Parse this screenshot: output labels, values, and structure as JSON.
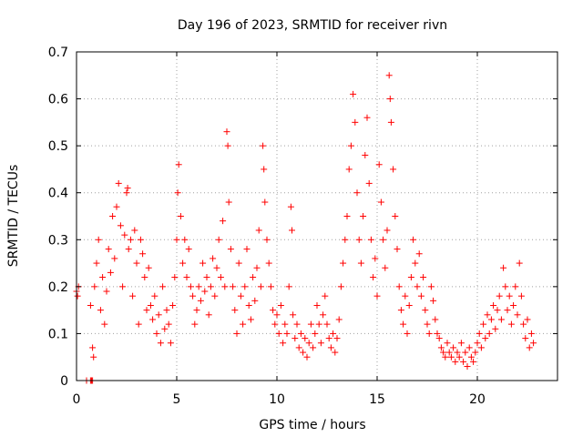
{
  "chart_data": {
    "type": "scatter",
    "title": "Day 196 of 2023, SRMTID for receiver rivn",
    "xlabel": "GPS time / hours",
    "ylabel": "SRMTID / TECUs",
    "xlim": [
      0,
      24
    ],
    "ylim": [
      0,
      0.7
    ],
    "xticks": [
      0,
      5,
      10,
      15,
      20
    ],
    "yticks": [
      0,
      0.1,
      0.2,
      0.3,
      0.4,
      0.5,
      0.6,
      0.7
    ],
    "grid": true,
    "marker": "plus",
    "color": "#ff0000",
    "series": [
      {
        "name": "SRMTID",
        "points": [
          [
            0.0,
            0.19
          ],
          [
            0.05,
            0.18
          ],
          [
            0.1,
            0.2
          ],
          [
            0.5,
            0.0
          ],
          [
            0.7,
            0.0
          ],
          [
            0.75,
            0.0
          ],
          [
            0.8,
            0.0
          ],
          [
            0.7,
            0.16
          ],
          [
            0.8,
            0.07
          ],
          [
            0.85,
            0.05
          ],
          [
            0.9,
            0.2
          ],
          [
            1.0,
            0.25
          ],
          [
            1.1,
            0.3
          ],
          [
            1.2,
            0.15
          ],
          [
            1.3,
            0.22
          ],
          [
            1.4,
            0.12
          ],
          [
            1.5,
            0.19
          ],
          [
            1.6,
            0.28
          ],
          [
            1.7,
            0.23
          ],
          [
            1.8,
            0.35
          ],
          [
            1.9,
            0.26
          ],
          [
            2.0,
            0.37
          ],
          [
            2.1,
            0.42
          ],
          [
            2.2,
            0.33
          ],
          [
            2.3,
            0.2
          ],
          [
            2.4,
            0.31
          ],
          [
            2.5,
            0.4
          ],
          [
            2.55,
            0.41
          ],
          [
            2.6,
            0.28
          ],
          [
            2.7,
            0.3
          ],
          [
            2.8,
            0.18
          ],
          [
            2.9,
            0.32
          ],
          [
            3.0,
            0.25
          ],
          [
            3.1,
            0.12
          ],
          [
            3.2,
            0.3
          ],
          [
            3.3,
            0.27
          ],
          [
            3.4,
            0.22
          ],
          [
            3.5,
            0.15
          ],
          [
            3.6,
            0.24
          ],
          [
            3.7,
            0.16
          ],
          [
            3.8,
            0.13
          ],
          [
            3.9,
            0.18
          ],
          [
            4.0,
            0.1
          ],
          [
            4.1,
            0.14
          ],
          [
            4.2,
            0.08
          ],
          [
            4.3,
            0.2
          ],
          [
            4.4,
            0.11
          ],
          [
            4.5,
            0.15
          ],
          [
            4.6,
            0.12
          ],
          [
            4.7,
            0.08
          ],
          [
            4.8,
            0.16
          ],
          [
            4.9,
            0.22
          ],
          [
            5.0,
            0.3
          ],
          [
            5.05,
            0.4
          ],
          [
            5.1,
            0.46
          ],
          [
            5.2,
            0.35
          ],
          [
            5.3,
            0.25
          ],
          [
            5.4,
            0.3
          ],
          [
            5.5,
            0.22
          ],
          [
            5.6,
            0.28
          ],
          [
            5.7,
            0.2
          ],
          [
            5.8,
            0.18
          ],
          [
            5.9,
            0.12
          ],
          [
            6.0,
            0.15
          ],
          [
            6.1,
            0.2
          ],
          [
            6.2,
            0.17
          ],
          [
            6.3,
            0.25
          ],
          [
            6.4,
            0.19
          ],
          [
            6.5,
            0.22
          ],
          [
            6.6,
            0.14
          ],
          [
            6.7,
            0.2
          ],
          [
            6.8,
            0.26
          ],
          [
            6.9,
            0.18
          ],
          [
            7.0,
            0.24
          ],
          [
            7.1,
            0.3
          ],
          [
            7.2,
            0.22
          ],
          [
            7.3,
            0.34
          ],
          [
            7.4,
            0.2
          ],
          [
            7.5,
            0.53
          ],
          [
            7.55,
            0.5
          ],
          [
            7.6,
            0.38
          ],
          [
            7.7,
            0.28
          ],
          [
            7.8,
            0.2
          ],
          [
            7.9,
            0.15
          ],
          [
            8.0,
            0.1
          ],
          [
            8.1,
            0.25
          ],
          [
            8.2,
            0.18
          ],
          [
            8.3,
            0.12
          ],
          [
            8.4,
            0.2
          ],
          [
            8.5,
            0.28
          ],
          [
            8.6,
            0.16
          ],
          [
            8.7,
            0.13
          ],
          [
            8.8,
            0.22
          ],
          [
            8.9,
            0.17
          ],
          [
            9.0,
            0.24
          ],
          [
            9.1,
            0.32
          ],
          [
            9.2,
            0.2
          ],
          [
            9.3,
            0.5
          ],
          [
            9.35,
            0.45
          ],
          [
            9.4,
            0.38
          ],
          [
            9.5,
            0.3
          ],
          [
            9.6,
            0.25
          ],
          [
            9.7,
            0.2
          ],
          [
            9.8,
            0.15
          ],
          [
            9.9,
            0.12
          ],
          [
            10.0,
            0.14
          ],
          [
            10.1,
            0.1
          ],
          [
            10.2,
            0.16
          ],
          [
            10.3,
            0.08
          ],
          [
            10.4,
            0.12
          ],
          [
            10.5,
            0.1
          ],
          [
            10.6,
            0.2
          ],
          [
            10.7,
            0.37
          ],
          [
            10.75,
            0.32
          ],
          [
            10.8,
            0.14
          ],
          [
            10.9,
            0.09
          ],
          [
            11.0,
            0.12
          ],
          [
            11.1,
            0.07
          ],
          [
            11.2,
            0.1
          ],
          [
            11.3,
            0.06
          ],
          [
            11.4,
            0.09
          ],
          [
            11.5,
            0.05
          ],
          [
            11.6,
            0.08
          ],
          [
            11.7,
            0.12
          ],
          [
            11.8,
            0.07
          ],
          [
            11.9,
            0.1
          ],
          [
            12.0,
            0.16
          ],
          [
            12.1,
            0.12
          ],
          [
            12.2,
            0.08
          ],
          [
            12.3,
            0.14
          ],
          [
            12.4,
            0.18
          ],
          [
            12.5,
            0.12
          ],
          [
            12.6,
            0.09
          ],
          [
            12.7,
            0.07
          ],
          [
            12.8,
            0.1
          ],
          [
            12.9,
            0.06
          ],
          [
            13.0,
            0.09
          ],
          [
            13.1,
            0.13
          ],
          [
            13.2,
            0.2
          ],
          [
            13.3,
            0.25
          ],
          [
            13.4,
            0.3
          ],
          [
            13.5,
            0.35
          ],
          [
            13.6,
            0.45
          ],
          [
            13.7,
            0.5
          ],
          [
            13.8,
            0.61
          ],
          [
            13.9,
            0.55
          ],
          [
            14.0,
            0.4
          ],
          [
            14.1,
            0.3
          ],
          [
            14.2,
            0.25
          ],
          [
            14.3,
            0.35
          ],
          [
            14.4,
            0.48
          ],
          [
            14.5,
            0.56
          ],
          [
            14.6,
            0.42
          ],
          [
            14.7,
            0.3
          ],
          [
            14.8,
            0.22
          ],
          [
            14.9,
            0.26
          ],
          [
            15.0,
            0.18
          ],
          [
            15.1,
            0.46
          ],
          [
            15.2,
            0.38
          ],
          [
            15.3,
            0.3
          ],
          [
            15.4,
            0.24
          ],
          [
            15.5,
            0.32
          ],
          [
            15.6,
            0.65
          ],
          [
            15.65,
            0.6
          ],
          [
            15.7,
            0.55
          ],
          [
            15.8,
            0.45
          ],
          [
            15.9,
            0.35
          ],
          [
            16.0,
            0.28
          ],
          [
            16.1,
            0.2
          ],
          [
            16.2,
            0.15
          ],
          [
            16.3,
            0.12
          ],
          [
            16.4,
            0.18
          ],
          [
            16.5,
            0.1
          ],
          [
            16.6,
            0.16
          ],
          [
            16.7,
            0.22
          ],
          [
            16.8,
            0.3
          ],
          [
            16.9,
            0.25
          ],
          [
            17.0,
            0.2
          ],
          [
            17.1,
            0.27
          ],
          [
            17.2,
            0.18
          ],
          [
            17.3,
            0.22
          ],
          [
            17.4,
            0.15
          ],
          [
            17.5,
            0.12
          ],
          [
            17.6,
            0.1
          ],
          [
            17.7,
            0.2
          ],
          [
            17.8,
            0.17
          ],
          [
            17.9,
            0.13
          ],
          [
            18.0,
            0.1
          ],
          [
            18.1,
            0.09
          ],
          [
            18.2,
            0.07
          ],
          [
            18.3,
            0.06
          ],
          [
            18.4,
            0.05
          ],
          [
            18.5,
            0.08
          ],
          [
            18.6,
            0.06
          ],
          [
            18.7,
            0.05
          ],
          [
            18.8,
            0.07
          ],
          [
            18.9,
            0.04
          ],
          [
            19.0,
            0.06
          ],
          [
            19.1,
            0.05
          ],
          [
            19.2,
            0.08
          ],
          [
            19.3,
            0.04
          ],
          [
            19.4,
            0.06
          ],
          [
            19.5,
            0.03
          ],
          [
            19.6,
            0.07
          ],
          [
            19.7,
            0.05
          ],
          [
            19.8,
            0.04
          ],
          [
            19.9,
            0.06
          ],
          [
            20.0,
            0.08
          ],
          [
            20.1,
            0.1
          ],
          [
            20.2,
            0.07
          ],
          [
            20.3,
            0.12
          ],
          [
            20.4,
            0.09
          ],
          [
            20.5,
            0.14
          ],
          [
            20.6,
            0.1
          ],
          [
            20.7,
            0.13
          ],
          [
            20.8,
            0.16
          ],
          [
            20.9,
            0.11
          ],
          [
            21.0,
            0.15
          ],
          [
            21.1,
            0.18
          ],
          [
            21.2,
            0.13
          ],
          [
            21.3,
            0.24
          ],
          [
            21.4,
            0.2
          ],
          [
            21.5,
            0.15
          ],
          [
            21.6,
            0.18
          ],
          [
            21.7,
            0.12
          ],
          [
            21.8,
            0.16
          ],
          [
            21.9,
            0.2
          ],
          [
            22.0,
            0.14
          ],
          [
            22.1,
            0.25
          ],
          [
            22.2,
            0.18
          ],
          [
            22.3,
            0.12
          ],
          [
            22.4,
            0.09
          ],
          [
            22.5,
            0.13
          ],
          [
            22.6,
            0.07
          ],
          [
            22.7,
            0.1
          ],
          [
            22.8,
            0.08
          ]
        ]
      }
    ]
  }
}
